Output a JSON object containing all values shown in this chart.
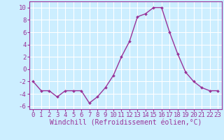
{
  "x": [
    0,
    1,
    2,
    3,
    4,
    5,
    6,
    7,
    8,
    9,
    10,
    11,
    12,
    13,
    14,
    15,
    16,
    17,
    18,
    19,
    20,
    21,
    22,
    23
  ],
  "y": [
    -2,
    -3.5,
    -3.5,
    -4.5,
    -3.5,
    -3.5,
    -3.5,
    -5.5,
    -4.5,
    -3,
    -1,
    2,
    4.5,
    8.5,
    9,
    10,
    10,
    6,
    2.5,
    -0.5,
    -2,
    -3,
    -3.5,
    -3.5
  ],
  "line_color": "#993399",
  "marker": "D",
  "marker_size": 2.0,
  "line_width": 1.0,
  "background_color": "#cceeff",
  "grid_color": "#ffffff",
  "text_color": "#993399",
  "xlabel": "Windchill (Refroidissement éolien,°C)",
  "xlabel_fontsize": 7.0,
  "tick_fontsize": 6.5,
  "xlim": [
    -0.5,
    23.5
  ],
  "ylim": [
    -6.5,
    11
  ],
  "yticks": [
    -6,
    -4,
    -2,
    0,
    2,
    4,
    6,
    8,
    10
  ],
  "xticks": [
    0,
    1,
    2,
    3,
    4,
    5,
    6,
    7,
    8,
    9,
    10,
    11,
    12,
    13,
    14,
    15,
    16,
    17,
    18,
    19,
    20,
    21,
    22,
    23
  ]
}
